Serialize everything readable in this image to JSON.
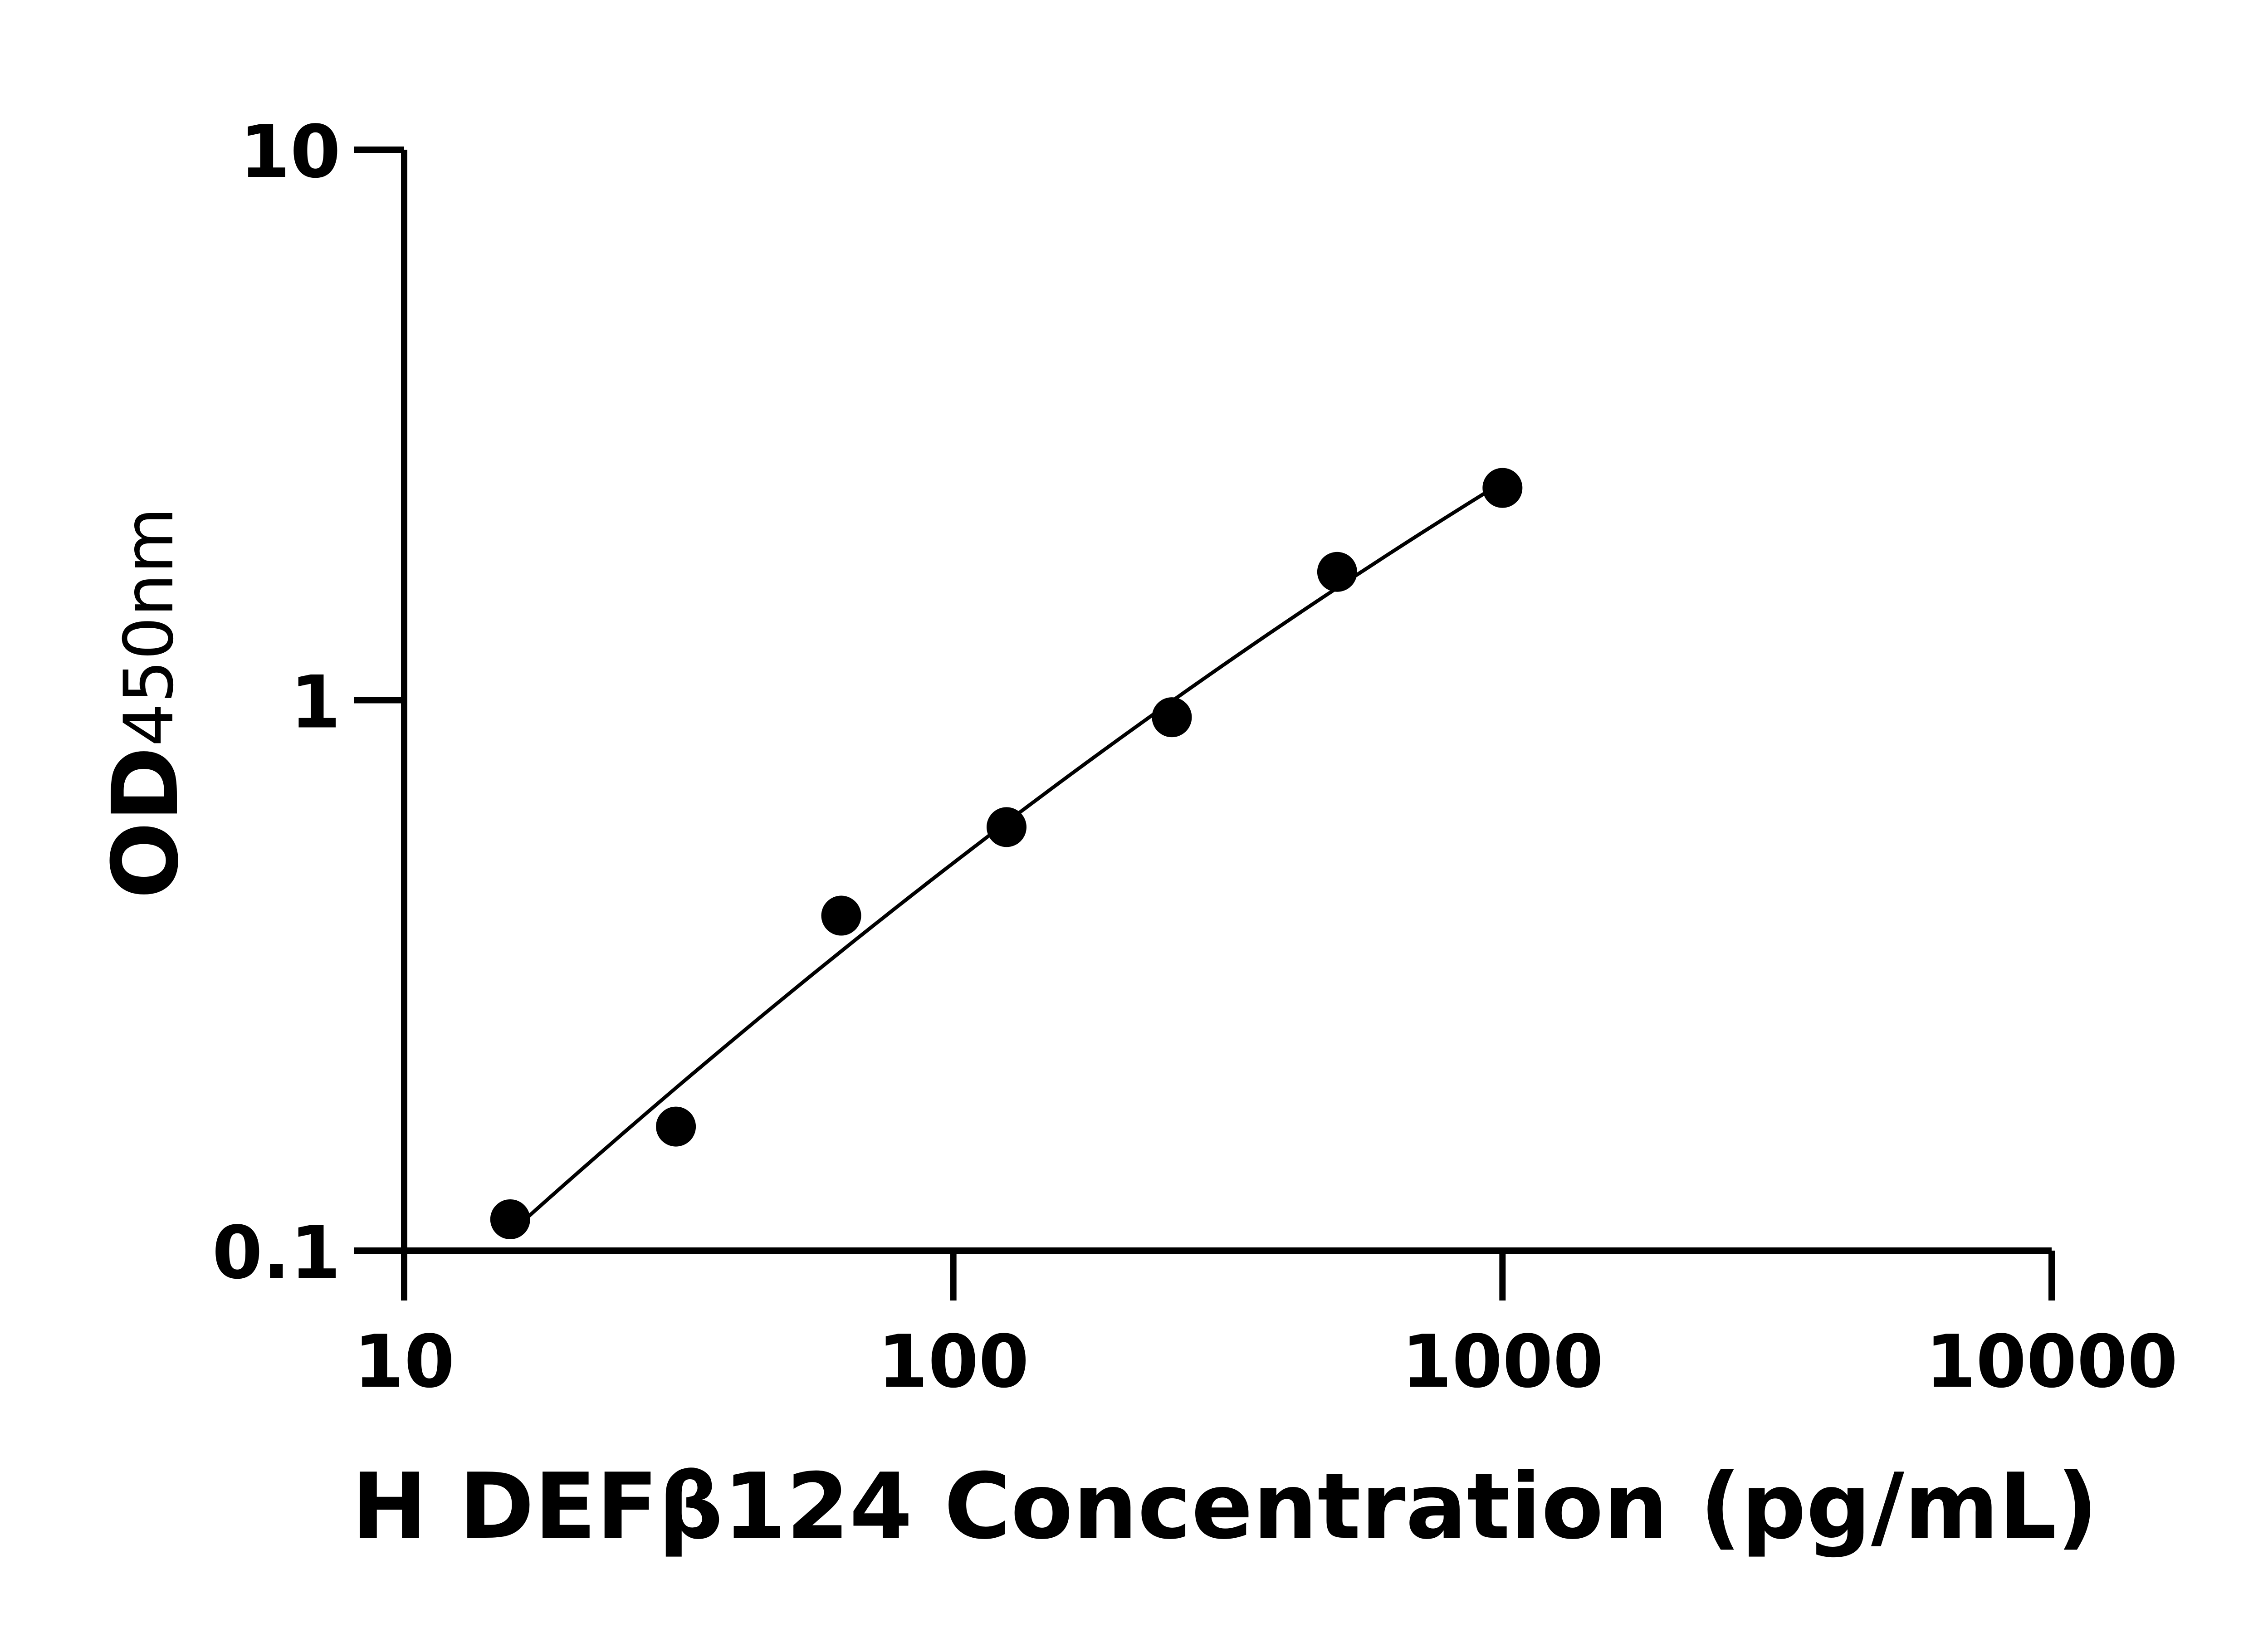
{
  "chart_data": {
    "type": "scatter",
    "xlabel": "H DEFβ124 Concentration (pg/mL)",
    "ylabel_main": "OD",
    "ylabel_sub": "450nm",
    "x_scale": "log",
    "y_scale": "log",
    "xlim": [
      10,
      10000
    ],
    "ylim": [
      0.1,
      10
    ],
    "x_ticks": [
      "10",
      "100",
      "1000",
      "10000"
    ],
    "y_ticks": [
      "0.1",
      "1",
      "10"
    ],
    "grid": false,
    "fit_line": true,
    "colors": {
      "points": "#000000",
      "line": "#000000"
    },
    "points": [
      {
        "x": 15.6,
        "y": 0.114
      },
      {
        "x": 31.25,
        "y": 0.168
      },
      {
        "x": 62.5,
        "y": 0.406
      },
      {
        "x": 125,
        "y": 0.588
      },
      {
        "x": 250,
        "y": 0.931
      },
      {
        "x": 500,
        "y": 1.71
      },
      {
        "x": 1000,
        "y": 2.43
      }
    ]
  }
}
